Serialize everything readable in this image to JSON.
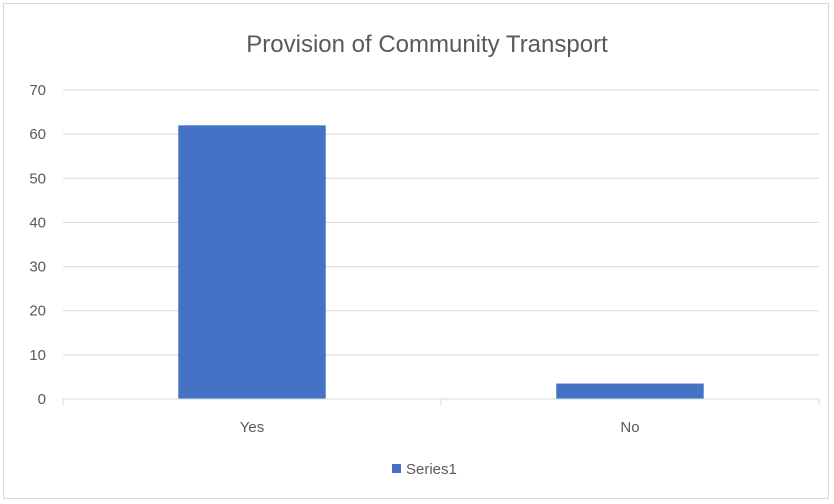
{
  "chart_data": {
    "type": "bar",
    "title": "Provision of Community Transport",
    "categories": [
      "Yes",
      "No"
    ],
    "series": [
      {
        "name": "Series1",
        "values": [
          62,
          3.5
        ]
      }
    ],
    "xlabel": "",
    "ylabel": "",
    "ylim": [
      0,
      70
    ],
    "yticks": [
      0,
      10,
      20,
      30,
      40,
      50,
      60,
      70
    ],
    "grid": true,
    "legend_position": "bottom",
    "colors": {
      "series": "#4472c4",
      "grid": "#d9d9d9",
      "text": "#595959"
    }
  }
}
